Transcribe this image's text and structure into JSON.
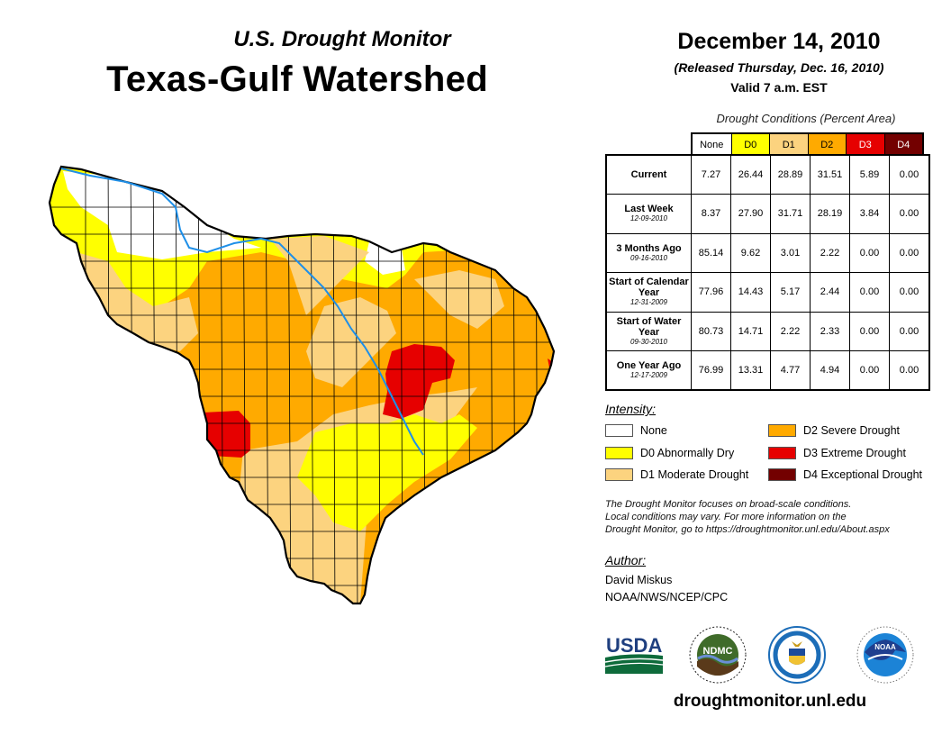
{
  "header": {
    "subtitle": "U.S. Drought Monitor",
    "title": "Texas-Gulf Watershed",
    "date": "December 14, 2010",
    "released": "(Released Thursday, Dec. 16, 2010)",
    "valid": "Valid 7 a.m. EST"
  },
  "table": {
    "caption": "Drought Conditions (Percent Area)",
    "columns": [
      "None",
      "D0",
      "D1",
      "D2",
      "D3",
      "D4"
    ],
    "column_colors": [
      "#ffffff",
      "#ffff00",
      "#fcd37f",
      "#ffaa00",
      "#e60000",
      "#730000"
    ],
    "rows": [
      {
        "label": "Current",
        "date": "",
        "values": [
          "7.27",
          "26.44",
          "28.89",
          "31.51",
          "5.89",
          "0.00"
        ]
      },
      {
        "label": "Last Week",
        "date": "12-09-2010",
        "values": [
          "8.37",
          "27.90",
          "31.71",
          "28.19",
          "3.84",
          "0.00"
        ]
      },
      {
        "label": "3 Months Ago",
        "date": "09-16-2010",
        "values": [
          "85.14",
          "9.62",
          "3.01",
          "2.22",
          "0.00",
          "0.00"
        ]
      },
      {
        "label": "Start of Calendar Year",
        "date": "12-31-2009",
        "values": [
          "77.96",
          "14.43",
          "5.17",
          "2.44",
          "0.00",
          "0.00"
        ]
      },
      {
        "label": "Start of Water Year",
        "date": "09-30-2010",
        "values": [
          "80.73",
          "14.71",
          "2.22",
          "2.33",
          "0.00",
          "0.00"
        ]
      },
      {
        "label": "One Year Ago",
        "date": "12-17-2009",
        "values": [
          "76.99",
          "13.31",
          "4.77",
          "4.94",
          "0.00",
          "0.00"
        ]
      }
    ]
  },
  "legend": {
    "title": "Intensity:",
    "items": [
      {
        "label": "None",
        "color": "#ffffff"
      },
      {
        "label": "D0 Abnormally Dry",
        "color": "#ffff00"
      },
      {
        "label": "D1 Moderate Drought",
        "color": "#fcd37f"
      },
      {
        "label": "D2 Severe Drought",
        "color": "#ffaa00"
      },
      {
        "label": "D3 Extreme Drought",
        "color": "#e60000"
      },
      {
        "label": "D4 Exceptional Drought",
        "color": "#730000"
      }
    ]
  },
  "note": {
    "line1": "The Drought Monitor focuses on broad-scale conditions.",
    "line2": "Local conditions may vary. For more information on the",
    "line3": "Drought Monitor, go to https://droughtmonitor.unl.edu/About.aspx"
  },
  "author": {
    "label": "Author:",
    "name": "David Miskus",
    "org": "NOAA/NWS/NCEP/CPC"
  },
  "logos": {
    "usda": "USDA",
    "ndmc": "NDMC",
    "noaa": "NOAA"
  },
  "map": {
    "region": "Texas-Gulf Watershed",
    "river_color": "#1e8fe8",
    "border_color": "#000000"
  },
  "footer": {
    "url": "droughtmonitor.unl.edu"
  }
}
